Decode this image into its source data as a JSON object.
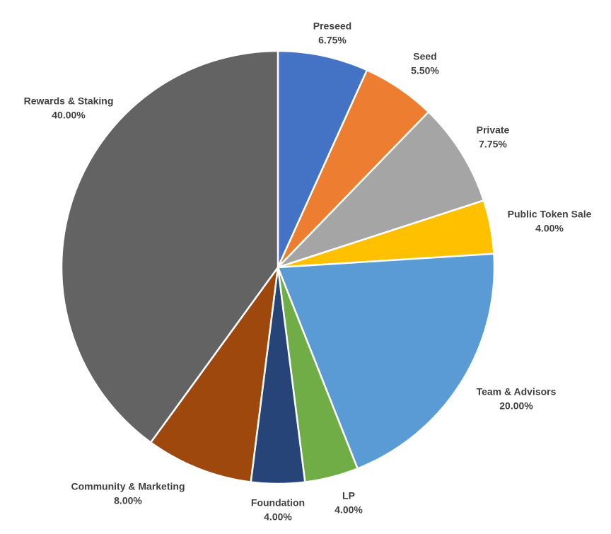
{
  "chart_data": {
    "type": "pie",
    "categories": [
      "Preseed",
      "Seed",
      "Private",
      "Public Token Sale",
      "Team & Advisors",
      "LP",
      "Foundation",
      "Community & Marketing",
      "Rewards & Staking"
    ],
    "values": [
      6.75,
      5.5,
      7.75,
      4,
      20,
      4,
      4,
      8,
      40
    ],
    "value_labels": [
      "6.75%",
      "5.50%",
      "7.75%",
      "4.00%",
      "20.00%",
      "4.00%",
      "4.00%",
      "8.00%",
      "40.00%"
    ],
    "colors": [
      "#4472c4",
      "#ed7d31",
      "#a5a5a5",
      "#ffc000",
      "#5b9bd5",
      "#70ad47",
      "#264478",
      "#9e480e",
      "#636363"
    ]
  }
}
